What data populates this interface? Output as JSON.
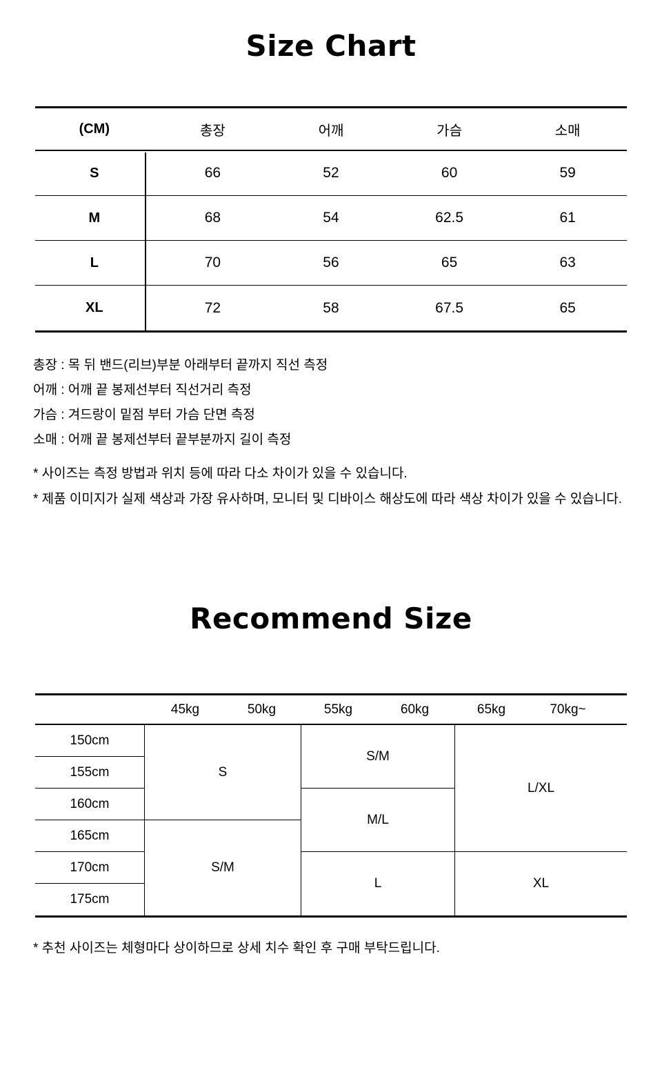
{
  "page": {
    "background": "#ffffff",
    "text_color": "#000000",
    "line_color": "#000000"
  },
  "size_chart": {
    "title": "Size Chart",
    "unit_label": "(CM)",
    "columns": [
      "총장",
      "어깨",
      "가슴",
      "소매"
    ],
    "rows": [
      {
        "label": "S",
        "values": [
          "66",
          "52",
          "60",
          "59"
        ]
      },
      {
        "label": "M",
        "values": [
          "68",
          "54",
          "62.5",
          "61"
        ]
      },
      {
        "label": "L",
        "values": [
          "70",
          "56",
          "65",
          "63"
        ]
      },
      {
        "label": "XL",
        "values": [
          "72",
          "58",
          "67.5",
          "65"
        ]
      }
    ],
    "measure_notes": [
      "총장 : 목 뒤 밴드(리브)부분 아래부터 끝까지 직선 측정",
      "어깨 : 어깨 끝 봉제선부터 직선거리 측정",
      "가슴 : 겨드랑이 밑점 부터 가슴 단면 측정",
      "소매 : 어깨 끝 봉제선부터 끝부분까지 길이 측정"
    ],
    "disclaimers": [
      "* 사이즈는 측정 방법과 위치 등에 따라 다소 차이가 있을 수 있습니다.",
      "* 제품 이미지가 실제 색상과 가장 유사하며, 모니터 및 디바이스 해상도에 따라 색상 차이가 있을 수 있습니다."
    ]
  },
  "recommend": {
    "title": "Recommend Size",
    "weight_headers": [
      "45kg",
      "50kg",
      "55kg",
      "60kg",
      "65kg",
      "70kg~"
    ],
    "height_rows": [
      "150cm",
      "155cm",
      "160cm",
      "165cm",
      "170cm",
      "175cm"
    ],
    "weight_columns": [
      {
        "weights": "45kg-50kg",
        "cells": [
          {
            "size": "S",
            "heights": "150cm-160cm"
          },
          {
            "size": "S/M",
            "heights": "165cm-175cm"
          }
        ]
      },
      {
        "weights": "55kg-60kg",
        "cells": [
          {
            "size": "S/M",
            "heights": "150cm-155cm"
          },
          {
            "size": "M/L",
            "heights": "160cm-165cm"
          },
          {
            "size": "L",
            "heights": "170cm-175cm"
          }
        ]
      },
      {
        "weights": "65kg-70kg~",
        "cells": [
          {
            "size": "L/XL",
            "heights": "150cm-165cm"
          },
          {
            "size": "XL",
            "heights": "170cm-175cm"
          }
        ]
      }
    ],
    "footnote": "* 추천 사이즈는 체형마다 상이하므로 상세 치수 확인 후 구매 부탁드립니다."
  }
}
